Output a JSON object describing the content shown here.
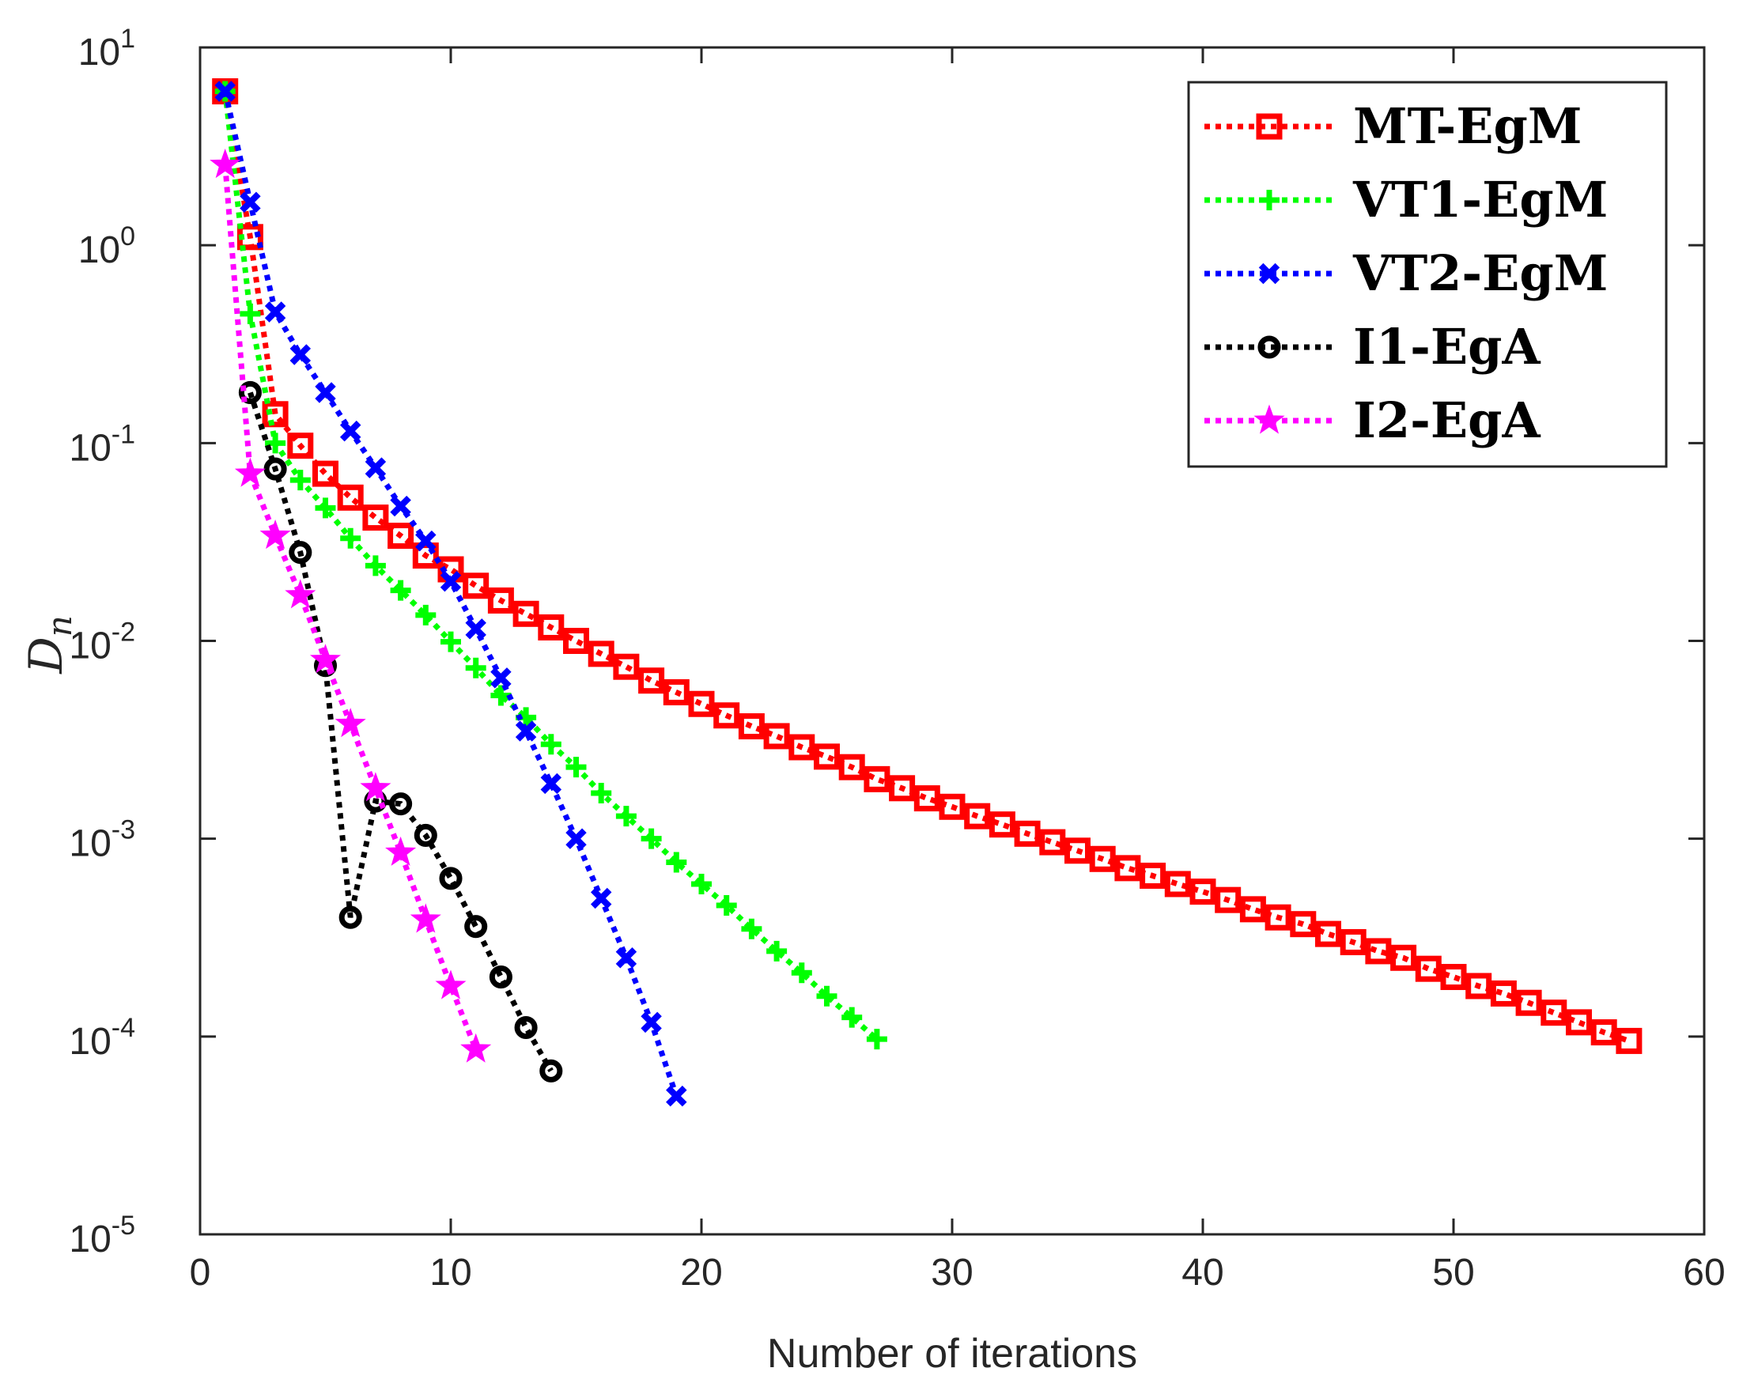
{
  "chart_data": {
    "type": "line",
    "title": "",
    "xlabel": "Number of iterations",
    "ylabel": "D",
    "ylabel_subscript": "n",
    "xlim": [
      0,
      60
    ],
    "ylim_exponents": [
      -5,
      1
    ],
    "y_scale": "log",
    "grid": false,
    "legend_position": "top-right",
    "x_ticks": [
      "0",
      "10",
      "20",
      "30",
      "40",
      "50",
      "60"
    ],
    "y_ticks": [
      {
        "base": "10",
        "exp": "-5"
      },
      {
        "base": "10",
        "exp": "-4"
      },
      {
        "base": "10",
        "exp": "-3"
      },
      {
        "base": "10",
        "exp": "-2"
      },
      {
        "base": "10",
        "exp": "-1"
      },
      {
        "base": "10",
        "exp": "0"
      },
      {
        "base": "10",
        "exp": "1"
      }
    ],
    "series": [
      {
        "name": "MT-EgM",
        "color": "#ff0000",
        "marker": "square",
        "x": [
          1,
          2,
          3,
          4,
          5,
          6,
          7,
          8,
          9,
          10,
          11,
          12,
          13,
          14,
          15,
          16,
          17,
          18,
          19,
          20,
          21,
          22,
          23,
          24,
          25,
          26,
          27,
          28,
          29,
          30,
          31,
          32,
          33,
          34,
          35,
          36,
          37,
          38,
          39,
          40,
          41,
          42,
          43,
          44,
          45,
          46,
          47,
          48,
          49,
          50,
          51,
          52,
          53,
          54,
          55,
          56,
          57
        ],
        "y": [
          6.0,
          1.1,
          0.14,
          0.097,
          0.07,
          0.053,
          0.042,
          0.034,
          0.027,
          0.023,
          0.019,
          0.016,
          0.0137,
          0.0117,
          0.01,
          0.0086,
          0.0074,
          0.0063,
          0.0055,
          0.0048,
          0.0042,
          0.0037,
          0.0033,
          0.0029,
          0.0026,
          0.0023,
          0.002,
          0.0018,
          0.0016,
          0.00145,
          0.0013,
          0.00118,
          0.00106,
          0.00096,
          0.00087,
          0.00079,
          0.00071,
          0.00065,
          0.00059,
          0.00054,
          0.00049,
          0.00044,
          0.0004,
          0.00037,
          0.00033,
          0.0003,
          0.00027,
          0.00025,
          0.00022,
          0.0002,
          0.00018,
          0.000165,
          0.000148,
          0.000132,
          0.000118,
          0.000105,
          9.5e-05
        ]
      },
      {
        "name": "VT1-EgM",
        "color": "#00ff00",
        "marker": "plus",
        "x": [
          1,
          2,
          3,
          4,
          5,
          6,
          7,
          8,
          9,
          10,
          11,
          12,
          13,
          14,
          15,
          16,
          17,
          18,
          19,
          20,
          21,
          22,
          23,
          24,
          25,
          26,
          27
        ],
        "y": [
          6.0,
          0.45,
          0.1,
          0.065,
          0.047,
          0.033,
          0.024,
          0.018,
          0.0135,
          0.0099,
          0.0073,
          0.0053,
          0.0041,
          0.003,
          0.0023,
          0.0017,
          0.0013,
          0.001,
          0.00076,
          0.00059,
          0.00046,
          0.00035,
          0.00027,
          0.00021,
          0.00016,
          0.000125,
          9.7e-05
        ]
      },
      {
        "name": "VT2-EgM",
        "color": "#0000ff",
        "marker": "x",
        "x": [
          1,
          2,
          3,
          4,
          5,
          6,
          7,
          8,
          9,
          10,
          11,
          12,
          13,
          14,
          15,
          16,
          17,
          18,
          19
        ],
        "y": [
          6.0,
          1.65,
          0.46,
          0.28,
          0.18,
          0.115,
          0.075,
          0.048,
          0.032,
          0.02,
          0.0115,
          0.0065,
          0.0035,
          0.0019,
          0.001,
          0.0005,
          0.00025,
          0.000118,
          5e-05
        ]
      },
      {
        "name": "I1-EgA",
        "color": "#000000",
        "marker": "circle",
        "x": [
          2,
          3,
          4,
          5,
          6,
          7,
          8,
          9,
          10,
          11,
          12,
          13,
          14
        ],
        "y": [
          0.18,
          0.074,
          0.028,
          0.0075,
          0.0004,
          0.00155,
          0.0015,
          0.00104,
          0.00063,
          0.00036,
          0.0002,
          0.000111,
          6.7e-05
        ]
      },
      {
        "name": "I2-EgA",
        "color": "#ff00ff",
        "marker": "star",
        "x": [
          1,
          2,
          3,
          4,
          5,
          6,
          7,
          8,
          9,
          10,
          11
        ],
        "y": [
          2.55,
          0.07,
          0.034,
          0.017,
          0.008,
          0.0038,
          0.0018,
          0.00085,
          0.00039,
          0.00018,
          8.6e-05
        ]
      }
    ]
  }
}
